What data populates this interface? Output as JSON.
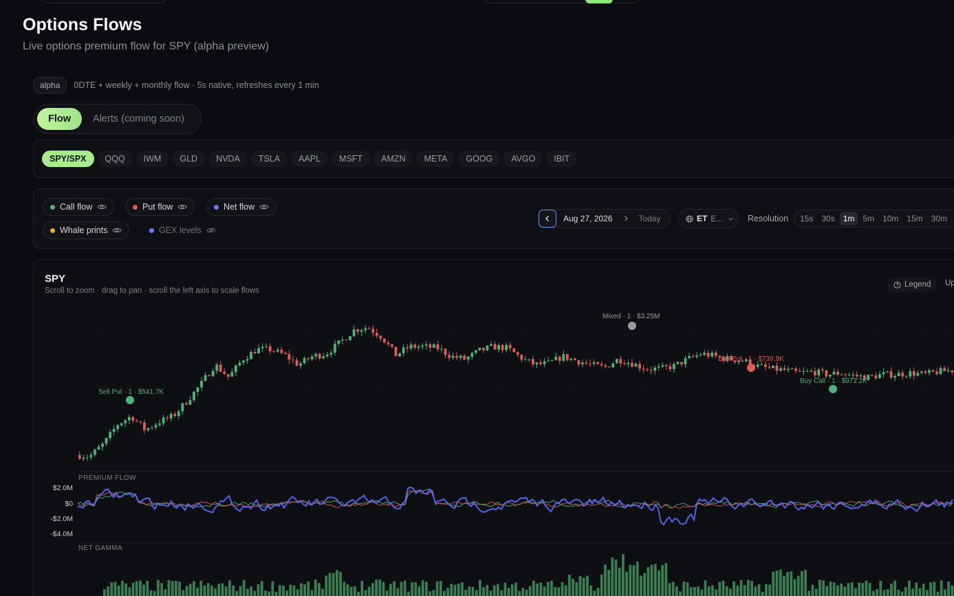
{
  "header": {
    "title": "Options Flows",
    "subtitle": "Live options premium flow for SPY (alpha preview)"
  },
  "meta": {
    "badge": "alpha",
    "text": "0DTE + weekly + monthly flow · 5s native, refreshes every 1 min"
  },
  "view_toggle": {
    "active": "Flow",
    "inactive": "Alerts (coming soon)"
  },
  "tickers": [
    "SPY/SPX",
    "QQQ",
    "IWM",
    "GLD",
    "NVDA",
    "TSLA",
    "AAPL",
    "MSFT",
    "AMZN",
    "META",
    "GOOG",
    "AVGO",
    "IBIT"
  ],
  "active_ticker": "SPY/SPX",
  "layers": [
    {
      "label": "Call flow",
      "color": "#4fb27a",
      "visible": true
    },
    {
      "label": "Put flow",
      "color": "#e05a5a",
      "visible": true
    },
    {
      "label": "Net flow",
      "color": "#6f7cff",
      "visible": true
    },
    {
      "label": "Whale prints",
      "color": "#f0a94a",
      "visible": true
    },
    {
      "label": "GEX levels",
      "color": "#6f7cff",
      "visible": false
    }
  ],
  "date_nav": {
    "date": "Aug 27, 2026",
    "today_label": "Today"
  },
  "timezone": {
    "code": "ET",
    "name": "E..."
  },
  "resolution": {
    "label": "Resolution",
    "options": [
      "15s",
      "30s",
      "1m",
      "5m",
      "10m",
      "15m",
      "30m"
    ],
    "active": "1m"
  },
  "chart": {
    "symbol": "SPY",
    "hint": "Scroll to zoom · drag to pan · scroll the left axis to scale flows",
    "legend_label": "Legend",
    "extra_label": "Up",
    "premium_pane_label": "PREMIUM FLOW",
    "gamma_pane_label": "NET GAMMA",
    "premium_ticks": [
      "$2.0M",
      "$0",
      "-$2.0M",
      "-$4.0M"
    ]
  },
  "colors": {
    "up": "#4fb27a",
    "down": "#e05a5a",
    "net": "#5b6cff",
    "mixed": "#9a9ca3",
    "accent": "#a6ec8c"
  },
  "chart_data": {
    "type": "line",
    "panes": [
      "price",
      "premium flow",
      "net gamma"
    ],
    "price_path": [
      0.05,
      0.04,
      0.13,
      0.27,
      0.33,
      0.23,
      0.29,
      0.33,
      0.44,
      0.56,
      0.7,
      0.61,
      0.74,
      0.81,
      0.81,
      0.77,
      0.7,
      0.76,
      0.78,
      0.86,
      0.95,
      0.97,
      0.9,
      0.77,
      0.83,
      0.83,
      0.82,
      0.76,
      0.74,
      0.8,
      0.83,
      0.82,
      0.75,
      0.7,
      0.71,
      0.76,
      0.73,
      0.7,
      0.68,
      0.74,
      0.71,
      0.67,
      0.67,
      0.69,
      0.74,
      0.78,
      0.76,
      0.74,
      0.73,
      0.69,
      0.67,
      0.66,
      0.64,
      0.65,
      0.63,
      0.64,
      0.62,
      0.61,
      0.63
    ],
    "price_path_end": [
      0.63,
      0.64,
      0.63,
      0.65,
      0.66
    ],
    "premium_flow": {
      "ticks": [
        2.0,
        0,
        -2.0,
        -4.0
      ],
      "unit": "$M"
    },
    "markers": [
      {
        "label": "Sell Put · 1 · $541.7K",
        "kind": "sell-put",
        "color": "#4fb27a"
      },
      {
        "label": "Mixed · 1 · $3.25M",
        "kind": "mixed",
        "color": "#9a9ca3"
      },
      {
        "label": "Buy Put · 1 · $739.9K",
        "kind": "buy-put",
        "color": "#e05a5a"
      },
      {
        "label": "Buy Call · 1 · $971.2K",
        "kind": "buy-call",
        "color": "#4fb27a"
      }
    ]
  }
}
